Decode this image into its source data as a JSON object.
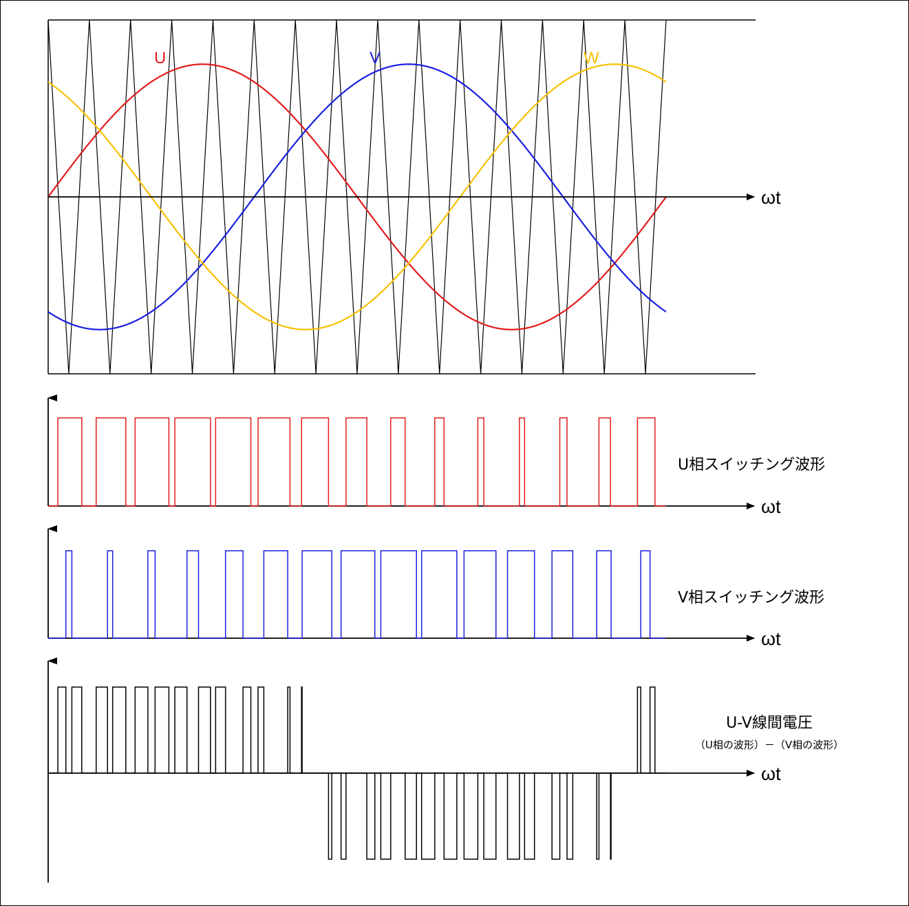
{
  "colors": {
    "u": "#e21b1b",
    "v": "#1a1ee0",
    "w": "#f7c000",
    "axis": "#000000",
    "carrier": "#000000"
  },
  "labels": {
    "phase_u": "U",
    "phase_v": "V",
    "phase_w": "W",
    "axis_omega_t": "ωt",
    "u_switching": "U相スイッチング波形",
    "v_switching": "V相スイッチング波形",
    "uv_line_voltage": "U-V線間電圧",
    "uv_line_voltage_formula": "（U相の波形）－（V相の波形）"
  },
  "chart_data": {
    "type": "line",
    "carrier": {
      "shape": "triangle",
      "periods": 15,
      "amplitude": 1.0
    },
    "modulation": {
      "amplitude": 0.75,
      "cycles": 1,
      "series": [
        {
          "name": "U",
          "phase_deg": 0
        },
        {
          "name": "V",
          "phase_deg": -120
        },
        {
          "name": "W",
          "phase_deg": 120
        }
      ]
    },
    "derived": [
      {
        "name": "U相スイッチング波形",
        "rule": "U > carrier"
      },
      {
        "name": "V相スイッチング波形",
        "rule": "V > carrier"
      },
      {
        "name": "U-V線間電圧",
        "rule": "U_switch - V_switch"
      }
    ]
  }
}
